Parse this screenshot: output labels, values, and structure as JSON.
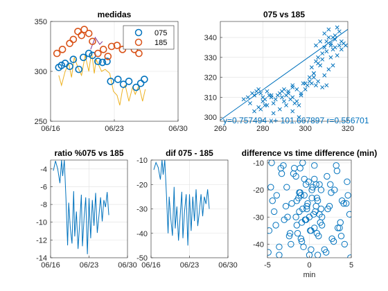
{
  "colors": {
    "series1": "#0072BD",
    "series2": "#D95319",
    "series3": "#EDB120",
    "series4": "#7E2F8E",
    "grid": "#DFDFDF",
    "axis": "#262626"
  },
  "chart_data": [
    {
      "type": "scatter",
      "title": "medidas",
      "xlabel": "",
      "ylabel": "",
      "x_tick_labels": [
        "06/16",
        "06/23",
        "06/30"
      ],
      "x_tick_values": [
        0,
        7,
        14
      ],
      "xlim": [
        0,
        14
      ],
      "ylim": [
        250,
        350
      ],
      "y_ticks": [
        250,
        300,
        350
      ],
      "grid": true,
      "legend_position": "top-right",
      "series": [
        {
          "name": "075",
          "marker": "circle",
          "color": "#0072BD",
          "x": [
            0.9,
            1.2,
            1.6,
            2.1,
            2.5,
            3.1,
            3.6,
            4.2,
            4.6,
            5.2,
            5.7,
            6.2,
            6.6,
            7.4,
            8.0,
            8.6,
            9.4,
            9.9,
            10.3
          ],
          "y": [
            304,
            306,
            308,
            305,
            312,
            302,
            314,
            318,
            316,
            310,
            309,
            310,
            290,
            292,
            287,
            290,
            284,
            288,
            292
          ]
        },
        {
          "name": "185",
          "marker": "circle",
          "color": "#D95319",
          "x": [
            0.7,
            1.3,
            2.1,
            2.5,
            3.0,
            3.4,
            3.7,
            4.2,
            4.6,
            5.2,
            5.8,
            6.3,
            6.7,
            7.3,
            7.9,
            8.4,
            8.8,
            9.2,
            9.7
          ],
          "y": [
            318,
            322,
            328,
            332,
            340,
            336,
            342,
            338,
            330,
            318,
            322,
            315,
            325,
            326,
            322,
            328,
            327,
            322,
            318
          ]
        },
        {
          "name": "",
          "marker": "line",
          "color": "#EDB120",
          "x": [
            0.9,
            1.2,
            1.6,
            2.0,
            2.3,
            2.6,
            3.0,
            3.4,
            3.8,
            4.2,
            4.5,
            4.8,
            5.0,
            5.3,
            5.6,
            6.0,
            6.5,
            6.9,
            7.3,
            7.6,
            7.9,
            8.2,
            8.6,
            9.0,
            9.3,
            9.7,
            10.1,
            10.4
          ],
          "y": [
            296,
            286,
            300,
            308,
            294,
            314,
            304,
            296,
            316,
            300,
            320,
            298,
            312,
            306,
            300,
            302,
            298,
            280,
            276,
            266,
            282,
            286,
            270,
            284,
            277,
            286,
            270,
            282
          ]
        },
        {
          "name": "",
          "marker": "line",
          "color": "#7E2F8E",
          "x": [
            4.4,
            4.9,
            5.4,
            5.7
          ],
          "y": [
            322,
            334,
            327,
            330
          ]
        }
      ]
    },
    {
      "type": "scatter",
      "title": "075 vs 185",
      "xlabel": "",
      "ylabel": "",
      "x_ticks": [
        260,
        280,
        300,
        320
      ],
      "y_ticks": [
        300,
        310,
        320,
        330,
        340
      ],
      "xlim": [
        260,
        320
      ],
      "ylim": [
        298,
        348
      ],
      "grid": true,
      "marker": "x",
      "points_x": [
        271,
        273,
        275,
        276,
        277,
        278,
        279,
        280,
        281,
        282,
        283,
        284,
        278,
        280,
        282,
        285,
        286,
        287,
        288,
        289,
        290,
        291,
        292,
        293,
        294,
        295,
        296,
        297,
        298,
        290,
        292,
        294,
        296,
        298,
        300,
        301,
        302,
        303,
        304,
        305,
        306,
        307,
        300,
        302,
        304,
        306,
        308,
        309,
        310,
        311,
        312,
        313,
        314,
        308,
        310,
        312,
        314,
        316,
        305,
        307,
        309,
        311,
        313,
        315,
        317,
        318,
        303,
        305,
        306,
        308,
        310,
        312,
        314,
        316,
        285,
        288,
        291,
        294,
        297,
        274,
        276,
        279,
        281,
        284,
        289,
        294,
        299,
        304,
        309,
        311,
        313,
        315,
        317,
        319
      ],
      "points_y": [
        309,
        310,
        312,
        311,
        313,
        314,
        312,
        310,
        309,
        313,
        311,
        310,
        305,
        308,
        306,
        307,
        309,
        311,
        312,
        310,
        308,
        311,
        312,
        309,
        310,
        307,
        308,
        306,
        311,
        314,
        313,
        315,
        314,
        312,
        317,
        316,
        320,
        325,
        322,
        328,
        330,
        326,
        314,
        318,
        322,
        327,
        332,
        335,
        338,
        340,
        337,
        334,
        341,
        329,
        333,
        336,
        339,
        343,
        336,
        338,
        342,
        344,
        340,
        345,
        338,
        337,
        317,
        316,
        318,
        315,
        316,
        330,
        335,
        336,
        302,
        304,
        306,
        303,
        300,
        307,
        303,
        304,
        306,
        311,
        313,
        316,
        317,
        320,
        321,
        324,
        326,
        331,
        334,
        336
      ],
      "fit": {
        "slope": 0.757494,
        "intercept": 101.667897,
        "x": [
          260,
          320
        ]
      },
      "annotation": "y=0.757494 x+ 101.667897 r=0.556701"
    },
    {
      "type": "line",
      "title": "ratio %075 vs 185",
      "xlabel": "",
      "ylabel": "",
      "x_tick_labels": [
        "06/16",
        "06/23",
        "06/30"
      ],
      "x_tick_values": [
        0,
        7,
        14
      ],
      "xlim": [
        0,
        14
      ],
      "ylim": [
        -14,
        -3
      ],
      "y_ticks": [
        -14,
        -12,
        -10,
        -8,
        -6,
        -4
      ],
      "grid": true,
      "x": [
        0.5,
        0.9,
        1.3,
        1.7,
        2.0,
        2.2,
        2.5,
        2.8,
        3.1,
        3.3,
        3.6,
        3.9,
        4.2,
        4.4,
        4.7,
        5.0,
        5.3,
        5.6,
        5.8,
        6.1,
        6.4,
        6.7,
        7.0,
        7.3,
        7.6,
        7.9,
        8.2,
        8.5,
        8.8,
        9.1,
        9.4,
        9.7,
        10.0,
        10.3,
        10.6
      ],
      "y": [
        -4.2,
        -3.1,
        -4.0,
        -5.6,
        -3.0,
        -4.8,
        -3.0,
        -7.3,
        -12.6,
        -7.8,
        -10.7,
        -12.4,
        -6.5,
        -11.6,
        -8.8,
        -13.0,
        -10.1,
        -6.9,
        -12.7,
        -9.5,
        -7.2,
        -13.6,
        -7.3,
        -11.8,
        -7.5,
        -10.4,
        -6.7,
        -11.2,
        -9.3,
        -7.2,
        -9.9,
        -7.5,
        -8.3,
        -6.6,
        -9.2
      ]
    },
    {
      "type": "line",
      "title": "dif 075 - 185",
      "xlabel": "",
      "ylabel": "",
      "x_tick_labels": [
        "06/16",
        "06/23",
        "06/30"
      ],
      "x_tick_values": [
        0,
        7,
        14
      ],
      "xlim": [
        0,
        14
      ],
      "ylim": [
        -50,
        -10
      ],
      "y_ticks": [
        -50,
        -40,
        -30,
        -20,
        -10
      ],
      "grid": true,
      "x": [
        0.5,
        0.9,
        1.3,
        1.7,
        2.0,
        2.2,
        2.5,
        2.8,
        3.1,
        3.3,
        3.6,
        3.9,
        4.2,
        4.4,
        4.7,
        5.0,
        5.3,
        5.6,
        5.8,
        6.1,
        6.4,
        6.7,
        7.0,
        7.3,
        7.6,
        7.9,
        8.2,
        8.5,
        8.8,
        9.1,
        9.4,
        9.7,
        10.0,
        10.3,
        10.6
      ],
      "y": [
        -14,
        -11,
        -13,
        -18,
        -10,
        -16,
        -10,
        -24,
        -40,
        -25,
        -34,
        -41,
        -21,
        -38,
        -29,
        -43,
        -33,
        -23,
        -42,
        -31,
        -24,
        -45,
        -24,
        -39,
        -25,
        -35,
        -22,
        -37,
        -31,
        -24,
        -33,
        -25,
        -28,
        -22,
        -30
      ]
    },
    {
      "type": "scatter",
      "title": "difference vs time difference (min)",
      "xlabel": "min",
      "ylabel": "",
      "x_ticks": [
        -5,
        0,
        5
      ],
      "y_ticks": [
        -40,
        -30,
        -20,
        -10
      ],
      "xlim": [
        -5,
        5
      ],
      "ylim": [
        -45,
        -9
      ],
      "grid": true,
      "marker": "circle",
      "points_x": [
        -4.8,
        -4.5,
        -4.2,
        -3.9,
        -3.6,
        -3.3,
        -3.0,
        -2.7,
        -2.4,
        -2.1,
        -1.8,
        -1.5,
        -1.2,
        -0.9,
        -0.6,
        -0.3,
        0.0,
        0.3,
        0.6,
        0.9,
        1.2,
        1.5,
        1.8,
        2.1,
        2.4,
        2.7,
        3.0,
        3.3,
        3.6,
        3.9,
        4.2,
        4.5,
        4.8,
        -4.6,
        -4.0,
        -3.4,
        -2.8,
        -2.2,
        -1.6,
        -1.0,
        -0.4,
        0.2,
        0.8,
        1.4,
        2.0,
        2.6,
        3.2,
        3.8,
        4.4,
        -1.5,
        -1.2,
        -0.9,
        -0.6,
        -0.3,
        0.0,
        0.3,
        0.6,
        0.9,
        1.2,
        1.5,
        -1.4,
        -1.1,
        -0.8,
        -0.5,
        -0.2,
        0.1,
        0.4,
        0.7,
        1.0,
        1.3,
        -1.6,
        -1.0,
        -0.4,
        0.2,
        0.8,
        1.4,
        -1.3,
        -0.7,
        -0.1,
        0.5,
        1.1,
        -4.4,
        -3.6,
        -2.6,
        -1.9,
        2.2,
        2.9,
        3.7,
        4.6,
        -4.9,
        -3.1,
        -2.3,
        2.5,
        3.4,
        4.1,
        4.9,
        -0.8,
        0.6,
        -1.1,
        1.0
      ],
      "points_y": [
        -35,
        -10,
        -28,
        -22,
        -41,
        -14,
        -31,
        -19,
        -37,
        -25,
        -12,
        -33,
        -21,
        -39,
        -16,
        -27,
        -44,
        -23,
        -11,
        -36,
        -18,
        -30,
        -42,
        -15,
        -26,
        -38,
        -20,
        -13,
        -34,
        -24,
        -40,
        -17,
        -29,
        -19,
        -33,
        -12,
        -26,
        -40,
        -15,
        -22,
        -31,
        -35,
        -18,
        -27,
        -43,
        -21,
        -11,
        -37,
        -25,
        -24,
        -28,
        -32,
        -22,
        -26,
        -30,
        -20,
        -34,
        -23,
        -29,
        -33,
        -36,
        -21,
        -27,
        -31,
        -25,
        -35,
        -19,
        -28,
        -24,
        -32,
        -30,
        -38,
        -18,
        -42,
        -26,
        -20,
        -23,
        -41,
        -17,
        -29,
        -37,
        -24,
        -44,
        -30,
        -14,
        -27,
        -39,
        -32,
        -22,
        -43,
        -11,
        -36,
        -18,
        -34,
        -25,
        -45,
        -10,
        -16,
        -12,
        -44,
        -13
      ]
    }
  ]
}
